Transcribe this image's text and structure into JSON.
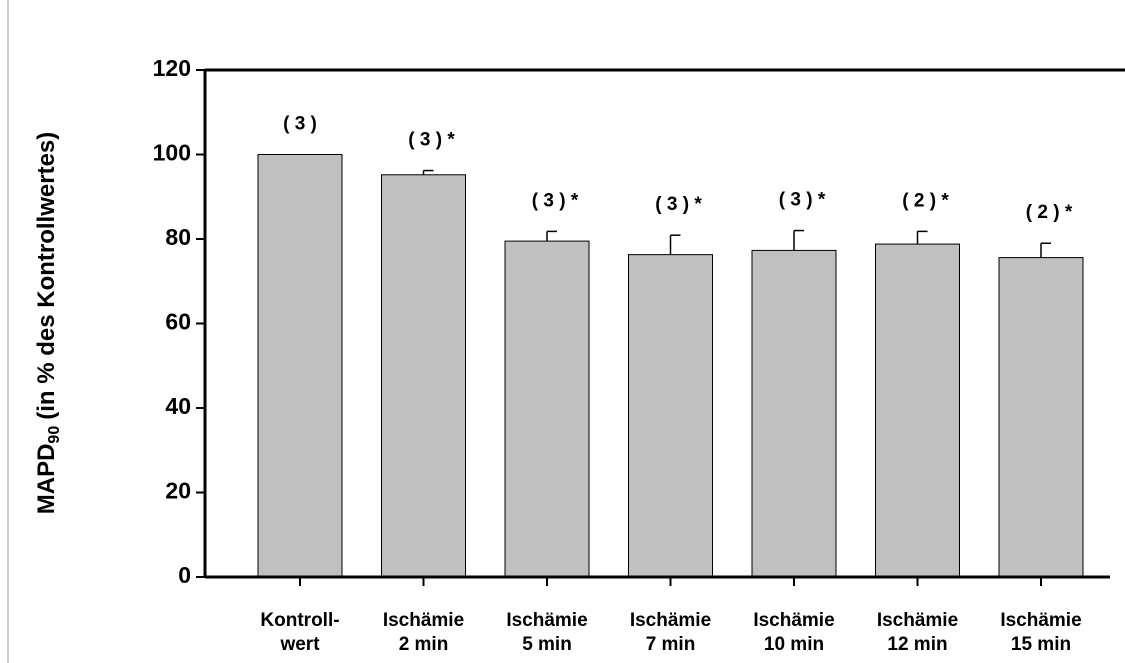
{
  "chart_data": {
    "type": "bar",
    "ylabel": [
      "MAPD",
      "90",
      "(in % des Kontrollwertes)"
    ],
    "categories": [
      [
        "Kontroll-",
        "wert"
      ],
      [
        "Ischämie",
        "2 min"
      ],
      [
        "Ischämie",
        "5 min"
      ],
      [
        "Ischämie",
        "7 min"
      ],
      [
        "Ischämie",
        "10 min"
      ],
      [
        "Ischämie",
        "12 min"
      ],
      [
        "Ischämie",
        "15 min"
      ]
    ],
    "values": [
      100,
      95.2,
      79.5,
      76.3,
      77.3,
      78.8,
      75.6
    ],
    "errors": [
      0,
      1,
      2.3,
      4.6,
      4.7,
      3,
      3.4
    ],
    "annotations": [
      "( 3 )",
      "( 3 ) *",
      "( 3 ) *",
      "( 3 ) *",
      "( 3 ) *",
      "( 2 ) *",
      "( 2 ) *"
    ],
    "color": "#c0c0c0",
    "ylim": [
      0,
      120
    ],
    "yticks": [
      0,
      20,
      40,
      60,
      80,
      100,
      120
    ],
    "grid": false
  }
}
